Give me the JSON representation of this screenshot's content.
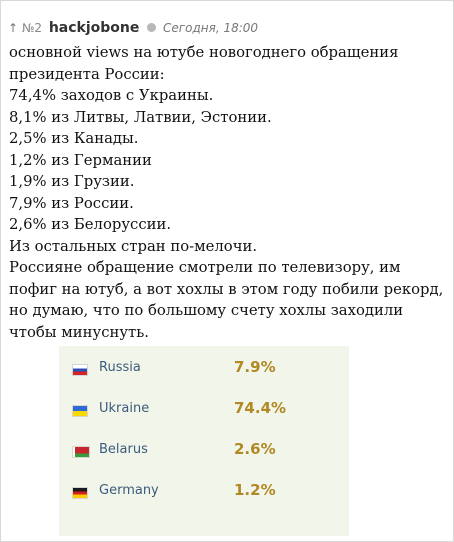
{
  "comment": {
    "arrow": "↑",
    "number": "№2",
    "username": "hackjobone",
    "time": "Сегодня, 18:00",
    "lines": [
      "основной views на ютубе новогоднего обращения",
      "президента России:",
      "74,4% заходов с Украины.",
      "8,1% из Литвы, Латвии, Эстонии.",
      "2,5% из Канады.",
      "1,2% из Германии",
      "1,9% из Грузии.",
      "7,9% из России.",
      "2,6% из Белоруссии.",
      "Из остальных стран по-мелочи."
    ],
    "paragraph": "Россияне обращение смотрели по телевизору, им пофиг на ютуб, а вот хохлы в этом году побили рекорд, но думаю, что по большому счету хохлы заходили чтобы минуснуть."
  },
  "stats": [
    {
      "country": "Russia",
      "percent": "7.9%",
      "flag": [
        "#ffffff",
        "#2a50b8",
        "#d62424"
      ]
    },
    {
      "country": "Ukraine",
      "percent": "74.4%",
      "flag": [
        "#2f6bd6",
        "#ffd800"
      ]
    },
    {
      "country": "Belarus",
      "percent": "2.6%",
      "flag": [
        "#c8262c",
        "#3a9a3e"
      ]
    },
    {
      "country": "Germany",
      "percent": "1.2%",
      "flag": [
        "#1a1a1a",
        "#d11f1f",
        "#ffcc00"
      ]
    }
  ],
  "colors": {
    "stats_background": "#f2f6ea",
    "percent_color": "#b18824",
    "country_color": "#3b5b7c"
  }
}
